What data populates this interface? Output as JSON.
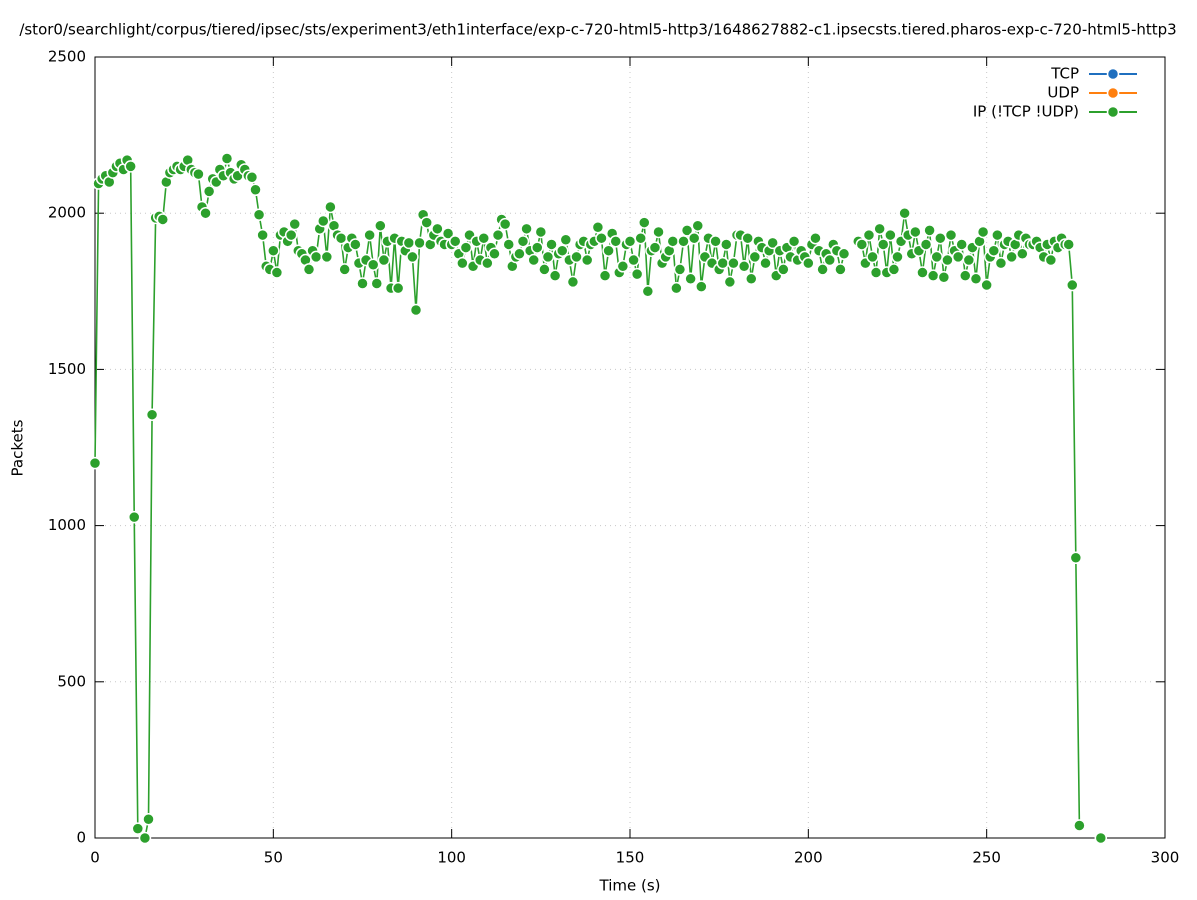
{
  "chart_data": {
    "type": "line",
    "title": "/stor0/searchlight/corpus/tiered/ipsec/sts/experiment3/eth1interface/exp-c-720-html5-http3/1648627882-c1.ipsecsts.tiered.pharos-exp-c-720-html5-http3",
    "x_label": "Time (s)",
    "y_label": "Packets",
    "xlim": [
      0,
      300
    ],
    "xticks": [
      0,
      50,
      100,
      150,
      200,
      250,
      300
    ],
    "ylim": [
      0,
      2500
    ],
    "yticks": [
      0,
      500,
      1000,
      1500,
      2000,
      2500
    ],
    "grid": true,
    "legend": "top-right",
    "x": [
      0,
      1,
      2,
      3,
      4,
      5,
      6,
      7,
      8,
      9,
      10,
      11,
      12,
      13,
      14,
      15,
      16,
      17,
      18,
      19,
      20,
      21,
      22,
      23,
      24,
      25,
      26,
      27,
      28,
      29,
      30,
      31,
      32,
      33,
      34,
      35,
      36,
      37,
      38,
      39,
      40,
      41,
      42,
      43,
      44,
      45,
      46,
      47,
      48,
      49,
      50,
      51,
      52,
      53,
      54,
      55,
      56,
      57,
      58,
      59,
      60,
      61,
      62,
      63,
      64,
      65,
      66,
      67,
      68,
      69,
      70,
      71,
      72,
      73,
      74,
      75,
      76,
      77,
      78,
      79,
      80,
      81,
      82,
      83,
      84,
      85,
      86,
      87,
      88,
      89,
      90,
      91,
      92,
      93,
      94,
      95,
      96,
      97,
      98,
      99,
      100,
      101,
      102,
      103,
      104,
      105,
      106,
      107,
      108,
      109,
      110,
      111,
      112,
      113,
      114,
      115,
      116,
      117,
      118,
      119,
      120,
      121,
      122,
      123,
      124,
      125,
      126,
      127,
      128,
      129,
      130,
      131,
      132,
      133,
      134,
      135,
      136,
      137,
      138,
      139,
      140,
      141,
      142,
      143,
      144,
      145,
      146,
      147,
      148,
      149,
      150,
      151,
      152,
      153,
      154,
      155,
      156,
      157,
      158,
      159,
      160,
      161,
      162,
      163,
      164,
      165,
      166,
      167,
      168,
      169,
      170,
      171,
      172,
      173,
      174,
      175,
      176,
      177,
      178,
      179,
      180,
      181,
      182,
      183,
      184,
      185,
      186,
      187,
      188,
      189,
      190,
      191,
      192,
      193,
      194,
      195,
      196,
      197,
      198,
      199,
      200,
      201,
      202,
      203,
      204,
      205,
      206,
      207,
      208,
      209,
      210,
      211,
      212,
      213,
      214,
      215,
      216,
      217,
      218,
      219,
      220,
      221,
      222,
      223,
      224,
      225,
      226,
      227,
      228,
      229,
      230,
      231,
      232,
      233,
      234,
      235,
      236,
      237,
      238,
      239,
      240,
      241,
      242,
      243,
      244,
      245,
      246,
      247,
      248,
      249,
      250,
      251,
      252,
      253,
      254,
      255,
      256,
      257,
      258,
      259,
      260,
      261,
      262,
      263,
      264,
      265,
      266,
      267,
      268,
      269,
      270,
      271,
      272,
      273,
      274,
      275,
      276,
      277,
      278,
      279,
      280,
      281,
      282
    ],
    "series": [
      {
        "name": "TCP",
        "color": "#1f6fbf"
      },
      {
        "name": "UDP",
        "color": "#ff7f0e"
      },
      {
        "name": "IP (!TCP  !UDP)",
        "color": "#2ca02c",
        "values": [
          1200,
          2095,
          2110,
          2120,
          2100,
          2130,
          2150,
          2160,
          2140,
          2170,
          2150,
          1027,
          30,
          null,
          0,
          60,
          1355,
          1985,
          1990,
          1980,
          2100,
          2130,
          2140,
          2150,
          2140,
          2150,
          2170,
          2140,
          2130,
          2125,
          2020,
          2000,
          2070,
          2110,
          2100,
          2140,
          2120,
          2175,
          2130,
          2110,
          2120,
          2155,
          2140,
          2120,
          2115,
          2075,
          1995,
          1930,
          1830,
          1820,
          1880,
          1810,
          1930,
          1940,
          1910,
          1930,
          1965,
          1880,
          1870,
          1850,
          1820,
          1880,
          1860,
          1950,
          1975,
          1860,
          2020,
          1960,
          1930,
          1920,
          1820,
          1890,
          1920,
          1900,
          1840,
          1775,
          1850,
          1930,
          1835,
          1775,
          1960,
          1850,
          1910,
          1760,
          1920,
          1760,
          1910,
          1880,
          1905,
          1860,
          1690,
          1905,
          1995,
          1970,
          1900,
          1930,
          1950,
          1910,
          1900,
          1935,
          1900,
          1910,
          1870,
          1840,
          1890,
          1930,
          1830,
          1910,
          1850,
          1920,
          1840,
          1890,
          1870,
          1930,
          1980,
          1965,
          1900,
          1830,
          1860,
          1870,
          1910,
          1950,
          1880,
          1850,
          1890,
          1940,
          1820,
          1860,
          1900,
          1800,
          1870,
          1880,
          1915,
          1850,
          1780,
          1860,
          1900,
          1910,
          1850,
          1900,
          1910,
          1955,
          1920,
          1800,
          1880,
          1935,
          1910,
          1810,
          1830,
          1900,
          1910,
          1850,
          1805,
          1920,
          1970,
          1750,
          1880,
          1890,
          1940,
          1840,
          1860,
          1880,
          1910,
          1760,
          1820,
          1910,
          1945,
          1790,
          1920,
          1960,
          1765,
          1860,
          1920,
          1840,
          1910,
          1820,
          1840,
          1900,
          1780,
          1840,
          1930,
          1930,
          1830,
          1920,
          1790,
          1860,
          1910,
          1890,
          1840,
          1880,
          1905,
          1800,
          1880,
          1820,
          1890,
          1860,
          1910,
          1850,
          1880,
          1860,
          1840,
          1900,
          1920,
          1880,
          1820,
          1870,
          1850,
          1900,
          1880,
          1820,
          1870,
          null,
          null,
          null,
          1910,
          1900,
          1840,
          1930,
          1860,
          1810,
          1950,
          1900,
          1810,
          1930,
          1820,
          1860,
          1910,
          2000,
          1930,
          1870,
          1940,
          1880,
          1810,
          1900,
          1945,
          1800,
          1860,
          1920,
          1795,
          1850,
          1930,
          1880,
          1860,
          1900,
          1800,
          1850,
          1890,
          1790,
          1910,
          1940,
          1770,
          1860,
          1880,
          1930,
          1840,
          1900,
          1910,
          1860,
          1900,
          1930,
          1870,
          1920,
          1900,
          1900,
          1910,
          1890,
          1860,
          1900,
          1850,
          1910,
          1890,
          1920,
          1900,
          1900,
          1770,
          897,
          40,
          null,
          null,
          null,
          null,
          null,
          0
        ]
      }
    ]
  }
}
